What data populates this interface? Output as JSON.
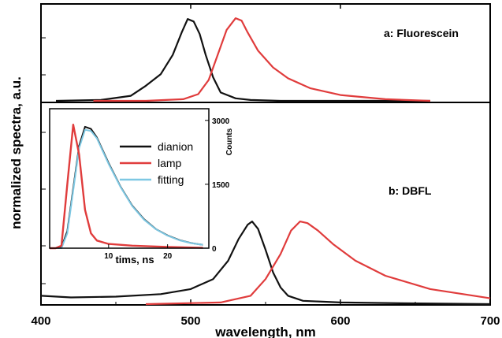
{
  "chart_data": [
    {
      "type": "line",
      "panels": [
        {
          "label": "a: Fluorescein",
          "series": [
            {
              "color": "#111111",
              "x": [
                410,
                440,
                460,
                470,
                480,
                488,
                494,
                498,
                502,
                506,
                510,
                515,
                520,
                530,
                540,
                560,
                600,
                640,
                660
              ],
              "y": [
                0.0,
                0.01,
                0.06,
                0.18,
                0.32,
                0.55,
                0.82,
                0.98,
                0.95,
                0.8,
                0.55,
                0.28,
                0.1,
                0.03,
                0.01,
                0.0,
                0.0,
                0.0,
                0.0
              ]
            },
            {
              "color": "#e03c3c",
              "x": [
                435,
                470,
                495,
                505,
                512,
                518,
                524,
                530,
                534,
                538,
                545,
                555,
                565,
                580,
                600,
                630,
                660
              ],
              "y": [
                0.0,
                0.0,
                0.02,
                0.08,
                0.25,
                0.55,
                0.85,
                0.99,
                0.96,
                0.82,
                0.6,
                0.4,
                0.27,
                0.15,
                0.07,
                0.02,
                0.0
              ]
            }
          ]
        },
        {
          "label": "b: DBFL",
          "series": [
            {
              "color": "#111111",
              "x": [
                400,
                420,
                450,
                480,
                500,
                515,
                525,
                532,
                538,
                541,
                545,
                550,
                555,
                560,
                565,
                575,
                600,
                640,
                700
              ],
              "y": [
                0.1,
                0.08,
                0.09,
                0.12,
                0.18,
                0.3,
                0.52,
                0.78,
                0.95,
                0.99,
                0.9,
                0.65,
                0.38,
                0.2,
                0.1,
                0.04,
                0.02,
                0.01,
                0.0
              ]
            },
            {
              "color": "#e03c3c",
              "x": [
                470,
                520,
                540,
                550,
                560,
                567,
                573,
                578,
                585,
                595,
                610,
                630,
                660,
                700
              ],
              "y": [
                0.0,
                0.02,
                0.1,
                0.3,
                0.6,
                0.88,
                0.99,
                0.97,
                0.88,
                0.72,
                0.52,
                0.34,
                0.18,
                0.07
              ]
            }
          ]
        }
      ],
      "x_ticks": [
        400,
        500,
        600,
        700
      ],
      "xlim": [
        400,
        700
      ],
      "xlabel": "wavelength, nm",
      "ylabel": "normalized spectra, a.u."
    },
    {
      "type": "line",
      "legend": {
        "placement": "top-center"
      },
      "series": [
        {
          "name": "dianion",
          "color": "#111111",
          "x": [
            0,
            1,
            2,
            3,
            4,
            5,
            6,
            7,
            8,
            10,
            12,
            14,
            16,
            18,
            20,
            22,
            24,
            26
          ],
          "y": [
            0,
            0,
            20,
            400,
            1400,
            2400,
            2850,
            2800,
            2600,
            2000,
            1450,
            1000,
            680,
            450,
            300,
            190,
            120,
            80
          ]
        },
        {
          "name": "lamp",
          "color": "#e03c3c",
          "x": [
            0,
            1,
            2,
            3,
            4,
            5,
            6,
            7,
            8,
            10,
            14,
            20,
            26
          ],
          "y": [
            0,
            0,
            60,
            1500,
            2900,
            2200,
            900,
            350,
            180,
            100,
            60,
            30,
            10
          ]
        },
        {
          "name": "fitting",
          "color": "#7ec8e3",
          "x": [
            0,
            2,
            3,
            4,
            5,
            6,
            7,
            8,
            10,
            12,
            14,
            16,
            18,
            20,
            22,
            24,
            26
          ],
          "y": [
            0,
            0,
            350,
            1350,
            2350,
            2780,
            2750,
            2580,
            1980,
            1440,
            990,
            670,
            445,
            295,
            185,
            118,
            78
          ]
        }
      ],
      "x_ticks": [
        10,
        20
      ],
      "xlim": [
        0,
        27
      ],
      "y_ticks": [
        0,
        1500,
        3000
      ],
      "ylim": [
        0,
        3200
      ],
      "xlabel": "tims, ns",
      "ylabel": "Counts"
    }
  ]
}
